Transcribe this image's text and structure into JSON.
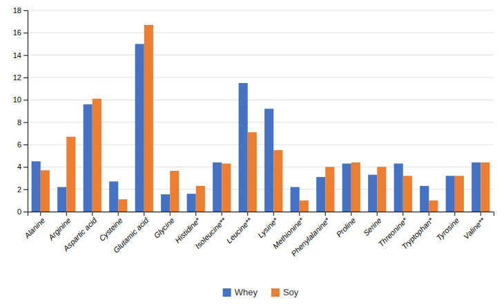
{
  "chart_data": {
    "type": "bar",
    "categories": [
      "Alanine",
      "Arginine",
      "Aspartic acid",
      "Cysteine",
      "Glutamic acid",
      "Glycine",
      "Histidine*",
      "Isoleucine**",
      "Leucine**",
      "Lysine*",
      "Methionine*",
      "Phenylalanine*",
      "Proline",
      "Serine",
      "Threonine*",
      "Tryptophan*",
      "Tyrosine",
      "Valine**"
    ],
    "series": [
      {
        "name": "Whey",
        "color": "#4472C4",
        "values": [
          4.5,
          2.2,
          9.6,
          2.7,
          15.0,
          1.55,
          1.6,
          4.4,
          11.5,
          9.2,
          2.2,
          3.1,
          4.3,
          3.3,
          4.3,
          2.3,
          3.2,
          4.4
        ]
      },
      {
        "name": "Soy",
        "color": "#ED7D31",
        "values": [
          3.7,
          6.7,
          10.1,
          1.1,
          16.7,
          3.65,
          2.3,
          4.3,
          7.1,
          5.5,
          1.0,
          4.0,
          4.4,
          4.0,
          3.2,
          1.0,
          3.2,
          4.4
        ]
      }
    ],
    "ylim": [
      0,
      18
    ],
    "yticks": [
      0,
      2,
      4,
      6,
      8,
      10,
      12,
      14,
      16,
      18
    ],
    "grid": true,
    "legend": "bottom"
  }
}
